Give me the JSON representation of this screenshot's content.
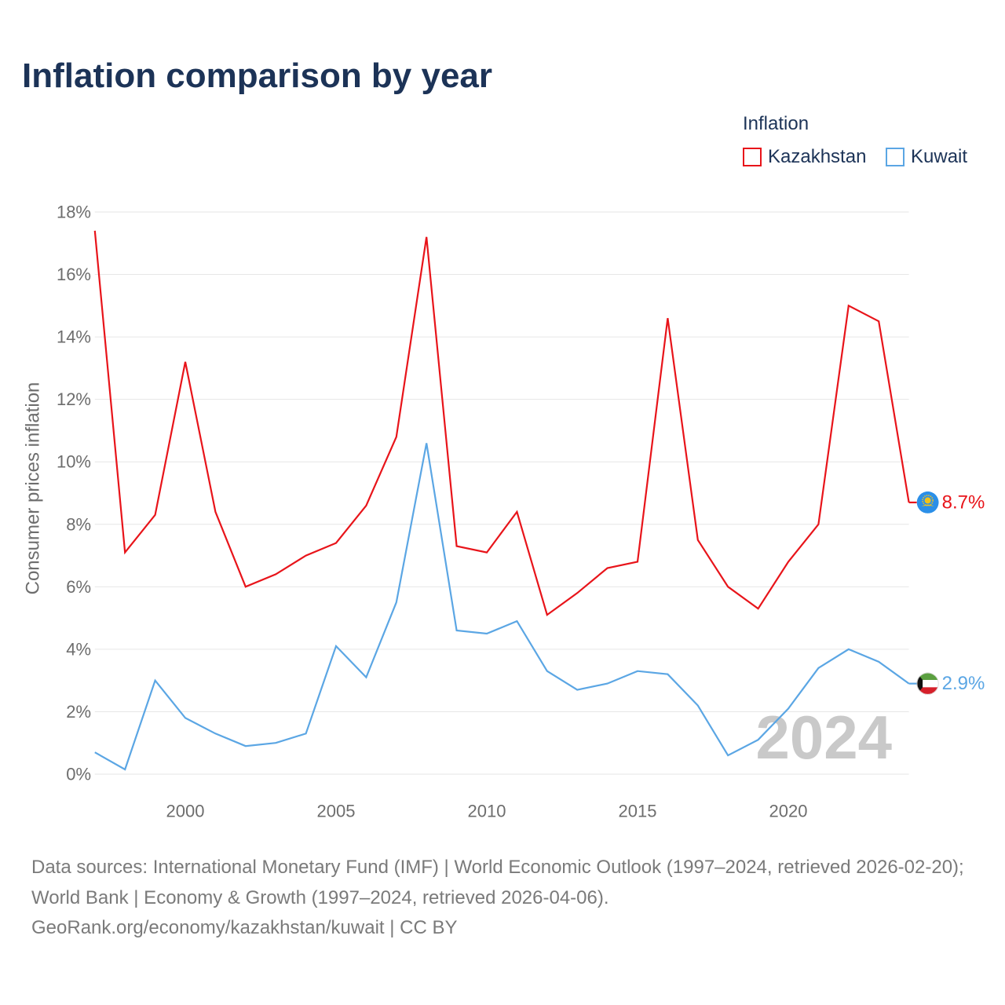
{
  "chart_data": {
    "type": "line",
    "title": "Inflation comparison by year",
    "legend_title": "Inflation",
    "legend_position": "top-right",
    "xlabel": "",
    "ylabel": "Consumer prices inflation",
    "x": [
      1997,
      1998,
      1999,
      2000,
      2001,
      2002,
      2003,
      2004,
      2005,
      2006,
      2007,
      2008,
      2009,
      2010,
      2011,
      2012,
      2013,
      2014,
      2015,
      2016,
      2017,
      2018,
      2019,
      2020,
      2021,
      2022,
      2023,
      2024
    ],
    "xlim": [
      1997,
      2024
    ],
    "x_ticks": [
      2000,
      2005,
      2010,
      2015,
      2020
    ],
    "x_tick_labels": [
      "2000",
      "2005",
      "2010",
      "2015",
      "2020"
    ],
    "ylim": [
      0,
      18
    ],
    "y_ticks": [
      0,
      2,
      4,
      6,
      8,
      10,
      12,
      14,
      16,
      18
    ],
    "y_tick_labels": [
      "0%",
      "2%",
      "4%",
      "6%",
      "8%",
      "10%",
      "12%",
      "14%",
      "16%",
      "18%"
    ],
    "grid": true,
    "year_label": "2024",
    "series": [
      {
        "name": "Kazakhstan",
        "color": "#e8141a",
        "icon": "kazakhstan-flag",
        "values": [
          17.4,
          7.1,
          8.3,
          13.2,
          8.4,
          6.0,
          6.4,
          7.0,
          7.4,
          8.6,
          10.8,
          17.2,
          7.3,
          7.1,
          8.4,
          5.1,
          5.8,
          6.6,
          6.8,
          14.6,
          7.5,
          6.0,
          5.3,
          6.8,
          8.0,
          15.0,
          14.5,
          8.7
        ],
        "end_label": "8.7%"
      },
      {
        "name": "Kuwait",
        "color": "#5ba6e4",
        "icon": "kuwait-flag",
        "values": [
          0.7,
          0.15,
          3.0,
          1.8,
          1.3,
          0.9,
          1.0,
          1.3,
          4.1,
          3.1,
          5.5,
          10.6,
          4.6,
          4.5,
          4.9,
          3.3,
          2.7,
          2.9,
          3.3,
          3.2,
          2.2,
          0.6,
          1.1,
          2.1,
          3.4,
          4.0,
          3.6,
          2.9
        ],
        "end_label": "2.9%"
      }
    ]
  },
  "footer": {
    "sources": "Data sources: International Monetary Fund (IMF) | World Economic Outlook (1997–2024, retrieved 2026-02-20); World Bank | Economy & Growth (1997–2024, retrieved 2026-04-06).",
    "credit": "GeoRank.org/economy/kazakhstan/kuwait | CC BY"
  }
}
